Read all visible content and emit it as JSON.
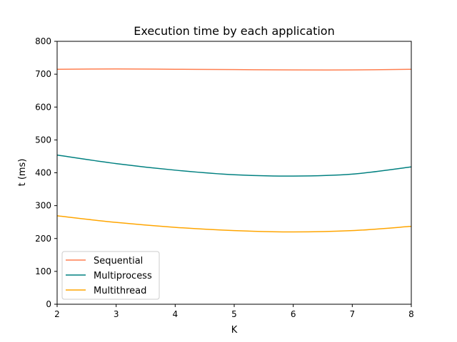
{
  "chart_data": {
    "type": "line",
    "title": "Execution time by each application",
    "xlabel": "K",
    "ylabel": "t (ms)",
    "xlim": [
      2,
      8
    ],
    "ylim": [
      0,
      800
    ],
    "xticks": [
      "2",
      "3",
      "4",
      "5",
      "6",
      "7",
      "8"
    ],
    "yticks": [
      "0",
      "100",
      "200",
      "300",
      "400",
      "500",
      "600",
      "700",
      "800"
    ],
    "grid": false,
    "legend_position": "lower-left",
    "x": [
      2,
      3,
      4,
      5,
      6,
      7,
      8
    ],
    "series": [
      {
        "name": "Sequential",
        "color": "#ff7f50",
        "values": [
          715,
          716,
          715,
          714,
          713,
          713,
          715
        ]
      },
      {
        "name": "Multiprocess",
        "color": "#008080",
        "values": [
          454,
          428,
          408,
          394,
          390,
          396,
          418
        ]
      },
      {
        "name": "Multithread",
        "color": "#ffa500",
        "values": [
          269,
          249,
          234,
          224,
          220,
          224,
          237
        ]
      }
    ]
  }
}
